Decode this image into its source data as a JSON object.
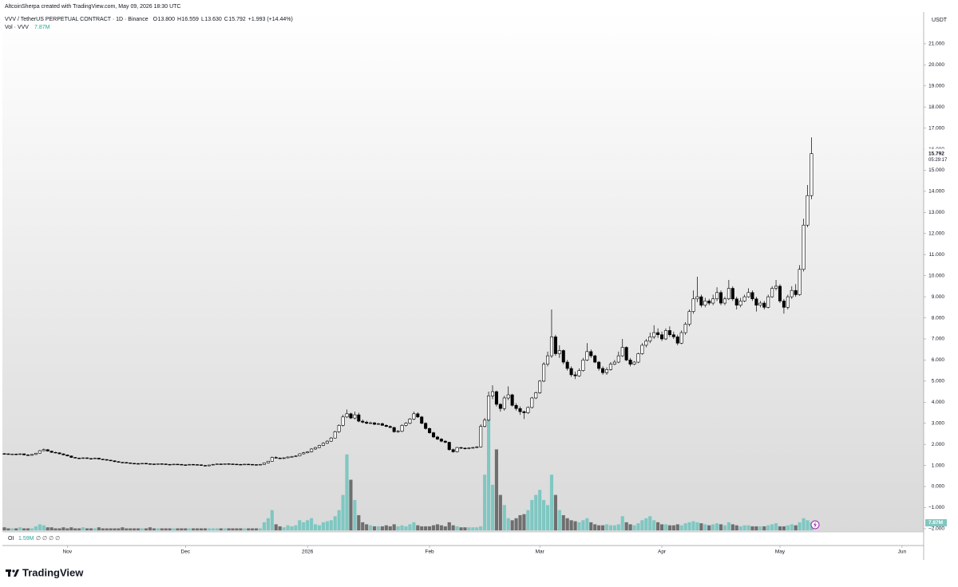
{
  "attribution": "AltcoinSherpa created with TradingView.com, May 09, 2026 18:30 UTC",
  "footer_logo": "TradingView",
  "chart_data": {
    "type": "candlestick",
    "title": "VVV / TetherUS PERPETUAL CONTRACT · 1D · Binance",
    "header_ohlc": [
      {
        "label": "O",
        "value": "13.800"
      },
      {
        "label": "H",
        "value": "16.559"
      },
      {
        "label": "L",
        "value": "13.630"
      },
      {
        "label": "C",
        "value": "15.792"
      }
    ],
    "header_change": "+1.993 (+14.44%)",
    "y_label": "USDT",
    "last_price_label": "15.792",
    "countdown": "05:29:17",
    "up_color": "#ffffff",
    "down_color": "#000000",
    "outline_color": "#000000",
    "open": [
      1.56,
      1.55,
      1.53,
      1.54,
      1.52,
      1.55,
      1.5,
      1.48,
      1.52,
      1.58,
      1.7,
      1.75,
      1.68,
      1.62,
      1.6,
      1.55,
      1.5,
      1.45,
      1.38,
      1.35,
      1.34,
      1.36,
      1.33,
      1.32,
      1.35,
      1.3,
      1.28,
      1.25,
      1.22,
      1.18,
      1.15,
      1.14,
      1.12,
      1.1,
      1.09,
      1.08,
      1.1,
      1.08,
      1.07,
      1.06,
      1.08,
      1.07,
      1.05,
      1.04,
      1.06,
      1.05,
      1.03,
      1.02,
      1.05,
      1.04,
      1.03,
      1.0,
      0.98,
      1.02,
      1.05,
      1.07,
      1.06,
      1.08,
      1.07,
      1.06,
      1.05,
      1.04,
      1.06,
      1.05,
      1.04,
      1.03,
      1.05,
      1.12,
      1.2,
      1.38,
      1.35,
      1.33,
      1.36,
      1.4,
      1.42,
      1.45,
      1.55,
      1.6,
      1.65,
      1.78,
      1.85,
      1.95,
      2.05,
      2.15,
      2.3,
      2.6,
      2.9,
      3.3,
      3.45,
      3.25,
      3.4,
      3.1,
      3.05,
      3.0,
      3.02,
      2.95,
      2.98,
      2.9,
      2.85,
      2.8,
      2.6,
      2.62,
      2.9,
      3.0,
      3.2,
      3.45,
      3.3,
      3.0,
      2.75,
      2.55,
      2.35,
      2.25,
      2.15,
      2.1,
      1.75,
      1.65,
      1.85,
      1.82,
      1.8,
      1.83,
      1.85,
      1.88,
      2.85,
      3.15,
      4.3,
      4.5,
      3.9,
      3.7,
      4.2,
      4.35,
      3.85,
      3.7,
      3.55,
      3.5,
      3.75,
      4.2,
      4.45,
      5.0,
      5.8,
      6.2,
      7.1,
      6.3,
      6.45,
      5.9,
      5.6,
      5.3,
      5.25,
      5.5,
      6.0,
      6.4,
      6.2,
      5.9,
      5.6,
      5.4,
      5.55,
      5.8,
      5.9,
      6.2,
      6.6,
      6.0,
      5.8,
      5.9,
      6.3,
      6.7,
      6.9,
      7.1,
      7.3,
      7.2,
      7.0,
      7.4,
      7.2,
      7.1,
      6.8,
      7.3,
      7.7,
      8.3,
      8.9,
      9.0,
      8.6,
      8.8,
      8.7,
      8.9,
      9.2,
      8.7,
      8.9,
      9.4,
      8.9,
      8.6,
      8.8,
      9.0,
      9.2,
      8.9,
      8.6,
      8.7,
      8.5,
      9.0,
      9.4,
      9.5,
      8.8,
      8.5,
      9.0,
      9.3,
      9.1,
      10.3,
      12.4,
      13.8
    ],
    "high": [
      1.58,
      1.57,
      1.56,
      1.56,
      1.57,
      1.57,
      1.53,
      1.54,
      1.6,
      1.73,
      1.8,
      1.77,
      1.7,
      1.65,
      1.62,
      1.57,
      1.52,
      1.47,
      1.4,
      1.37,
      1.38,
      1.38,
      1.35,
      1.37,
      1.36,
      1.32,
      1.3,
      1.27,
      1.24,
      1.2,
      1.17,
      1.16,
      1.14,
      1.12,
      1.11,
      1.11,
      1.12,
      1.1,
      1.09,
      1.1,
      1.1,
      1.09,
      1.07,
      1.08,
      1.08,
      1.07,
      1.05,
      1.07,
      1.07,
      1.06,
      1.05,
      1.02,
      1.04,
      1.07,
      1.09,
      1.09,
      1.1,
      1.1,
      1.09,
      1.08,
      1.07,
      1.08,
      1.08,
      1.07,
      1.06,
      1.07,
      1.14,
      1.22,
      1.42,
      1.43,
      1.38,
      1.38,
      1.43,
      1.45,
      1.48,
      1.58,
      1.64,
      1.68,
      1.82,
      1.88,
      1.98,
      2.1,
      2.2,
      2.35,
      2.65,
      2.95,
      3.4,
      3.65,
      3.5,
      3.55,
      3.5,
      3.18,
      3.12,
      3.08,
      3.06,
      3.02,
      3.03,
      2.95,
      2.9,
      2.83,
      2.68,
      2.95,
      3.05,
      3.25,
      3.55,
      3.52,
      3.35,
      3.05,
      2.8,
      2.6,
      2.4,
      2.3,
      2.2,
      2.12,
      1.8,
      1.88,
      1.88,
      1.85,
      1.86,
      1.88,
      1.92,
      2.95,
      3.25,
      4.5,
      4.8,
      4.55,
      3.95,
      4.3,
      4.75,
      4.4,
      3.95,
      3.8,
      3.6,
      3.8,
      4.25,
      4.5,
      5.05,
      5.9,
      6.4,
      8.4,
      7.2,
      6.7,
      6.5,
      6.0,
      5.7,
      5.45,
      5.6,
      6.1,
      6.8,
      6.5,
      6.25,
      5.95,
      5.7,
      5.65,
      5.9,
      6.0,
      6.4,
      7.0,
      6.65,
      6.1,
      5.95,
      6.35,
      6.8,
      7.0,
      7.3,
      7.65,
      7.5,
      7.35,
      7.5,
      7.6,
      7.35,
      7.2,
      7.4,
      7.8,
      8.4,
      9.3,
      9.95,
      9.1,
      8.95,
      8.9,
      9.1,
      9.45,
      9.3,
      9.0,
      9.8,
      9.5,
      9.0,
      8.95,
      9.1,
      9.4,
      9.3,
      9.0,
      8.8,
      8.8,
      9.1,
      9.5,
      9.8,
      9.6,
      8.9,
      9.1,
      9.5,
      9.6,
      10.5,
      12.7,
      14.3,
      16.559
    ],
    "low": [
      1.53,
      1.51,
      1.51,
      1.5,
      1.5,
      1.48,
      1.46,
      1.46,
      1.5,
      1.56,
      1.67,
      1.66,
      1.6,
      1.58,
      1.53,
      1.48,
      1.43,
      1.36,
      1.33,
      1.32,
      1.32,
      1.31,
      1.3,
      1.3,
      1.28,
      1.26,
      1.23,
      1.2,
      1.16,
      1.13,
      1.12,
      1.1,
      1.08,
      1.07,
      1.06,
      1.06,
      1.06,
      1.05,
      1.04,
      1.04,
      1.05,
      1.03,
      1.02,
      1.02,
      1.03,
      1.01,
      1.0,
      1.0,
      1.02,
      1.01,
      0.98,
      0.96,
      0.96,
      1.0,
      1.03,
      1.04,
      1.04,
      1.05,
      1.04,
      1.03,
      1.02,
      1.02,
      1.03,
      1.02,
      1.01,
      1.01,
      1.03,
      1.1,
      1.18,
      1.32,
      1.31,
      1.3,
      1.34,
      1.38,
      1.4,
      1.43,
      1.52,
      1.57,
      1.62,
      1.74,
      1.82,
      1.92,
      2.02,
      2.12,
      2.28,
      2.55,
      2.85,
      3.25,
      3.2,
      3.18,
      3.05,
      3.0,
      2.95,
      2.96,
      2.92,
      2.92,
      2.88,
      2.82,
      2.77,
      2.55,
      2.55,
      2.58,
      2.85,
      2.95,
      3.15,
      3.25,
      2.95,
      2.7,
      2.5,
      2.3,
      2.2,
      2.1,
      2.05,
      1.7,
      1.6,
      1.62,
      1.78,
      1.76,
      1.77,
      1.8,
      1.82,
      1.85,
      2.8,
      3.1,
      4.15,
      3.8,
      3.55,
      3.6,
      4.1,
      3.8,
      3.6,
      3.4,
      3.2,
      3.45,
      3.7,
      4.15,
      4.4,
      4.95,
      5.7,
      6.1,
      6.2,
      6.1,
      5.8,
      5.5,
      5.2,
      5.1,
      5.2,
      5.45,
      5.95,
      6.1,
      5.85,
      5.5,
      5.3,
      5.3,
      5.5,
      5.75,
      5.85,
      6.15,
      5.95,
      5.7,
      5.75,
      5.85,
      6.25,
      6.6,
      6.8,
      7.0,
      7.05,
      6.9,
      6.95,
      7.1,
      7.0,
      6.7,
      6.75,
      7.2,
      7.6,
      8.2,
      8.75,
      8.5,
      8.5,
      8.6,
      8.6,
      8.8,
      8.6,
      8.6,
      8.85,
      8.8,
      8.4,
      8.5,
      8.75,
      8.95,
      8.8,
      8.3,
      8.5,
      8.4,
      8.45,
      8.95,
      9.3,
      8.7,
      8.2,
      8.4,
      8.9,
      9.0,
      9.05,
      10.2,
      12.3,
      13.63
    ],
    "close": [
      1.55,
      1.53,
      1.54,
      1.52,
      1.55,
      1.5,
      1.48,
      1.52,
      1.58,
      1.7,
      1.75,
      1.68,
      1.62,
      1.6,
      1.55,
      1.5,
      1.45,
      1.38,
      1.35,
      1.34,
      1.36,
      1.33,
      1.32,
      1.35,
      1.3,
      1.28,
      1.25,
      1.22,
      1.18,
      1.15,
      1.14,
      1.12,
      1.1,
      1.09,
      1.08,
      1.1,
      1.08,
      1.07,
      1.06,
      1.08,
      1.07,
      1.05,
      1.04,
      1.06,
      1.05,
      1.03,
      1.02,
      1.05,
      1.04,
      1.03,
      1.0,
      0.98,
      1.02,
      1.05,
      1.07,
      1.06,
      1.08,
      1.07,
      1.06,
      1.05,
      1.04,
      1.06,
      1.05,
      1.04,
      1.03,
      1.05,
      1.12,
      1.2,
      1.38,
      1.35,
      1.33,
      1.36,
      1.4,
      1.42,
      1.45,
      1.55,
      1.6,
      1.65,
      1.78,
      1.85,
      1.95,
      2.05,
      2.15,
      2.3,
      2.6,
      2.9,
      3.3,
      3.45,
      3.25,
      3.4,
      3.1,
      3.05,
      3.0,
      3.02,
      2.95,
      2.98,
      2.9,
      2.85,
      2.8,
      2.6,
      2.62,
      2.9,
      3.0,
      3.2,
      3.45,
      3.3,
      3.0,
      2.75,
      2.55,
      2.35,
      2.25,
      2.15,
      2.1,
      1.75,
      1.65,
      1.85,
      1.82,
      1.8,
      1.83,
      1.85,
      1.88,
      2.85,
      3.15,
      4.3,
      4.5,
      3.9,
      3.7,
      4.2,
      4.35,
      3.85,
      3.7,
      3.55,
      3.5,
      3.75,
      4.2,
      4.45,
      5.0,
      5.8,
      6.2,
      7.1,
      6.3,
      6.45,
      5.9,
      5.6,
      5.3,
      5.25,
      5.5,
      6.0,
      6.4,
      6.2,
      5.9,
      5.6,
      5.4,
      5.55,
      5.8,
      5.9,
      6.2,
      6.6,
      6.0,
      5.8,
      5.9,
      6.3,
      6.7,
      6.9,
      7.1,
      7.3,
      7.2,
      7.0,
      7.4,
      7.2,
      7.1,
      6.8,
      7.3,
      7.7,
      8.3,
      8.9,
      9.0,
      8.6,
      8.8,
      8.7,
      8.9,
      9.2,
      8.7,
      8.9,
      9.4,
      8.9,
      8.6,
      8.8,
      9.0,
      9.2,
      8.9,
      8.6,
      8.7,
      8.5,
      9.0,
      9.4,
      9.5,
      8.8,
      8.5,
      9.0,
      9.3,
      9.1,
      10.3,
      12.4,
      13.8,
      15.792
    ],
    "volume": {
      "name": "Vol · VVV",
      "axis": "y2",
      "up_color": "#7fc7c2",
      "down_color": "#6f6f6f",
      "value_label": "7.87M",
      "values": [
        3,
        2,
        2,
        2,
        3,
        2,
        2,
        2,
        4,
        6,
        5,
        3,
        3,
        2,
        2,
        3,
        2,
        3,
        2,
        2,
        3,
        2,
        2,
        2,
        3,
        2,
        2,
        2,
        2,
        2,
        3,
        2,
        2,
        2,
        2,
        2,
        2,
        3,
        2,
        2,
        2,
        2,
        2,
        2,
        2,
        2,
        2,
        2,
        2,
        2,
        2,
        2,
        2,
        2,
        2,
        2,
        2,
        2,
        2,
        2,
        2,
        2,
        2,
        2,
        2,
        2,
        8,
        12,
        20,
        6,
        4,
        3,
        5,
        4,
        5,
        10,
        8,
        10,
        12,
        6,
        5,
        8,
        9,
        10,
        14,
        20,
        35,
        75,
        50,
        30,
        15,
        8,
        6,
        5,
        4,
        4,
        4,
        5,
        4,
        6,
        4,
        5,
        4,
        6,
        8,
        5,
        4,
        4,
        4,
        5,
        6,
        5,
        4,
        8,
        5,
        4,
        3,
        3,
        3,
        3,
        3,
        4,
        55,
        110,
        45,
        80,
        35,
        25,
        12,
        10,
        12,
        15,
        16,
        20,
        30,
        35,
        40,
        30,
        25,
        55,
        35,
        20,
        15,
        12,
        10,
        9,
        8,
        10,
        12,
        8,
        6,
        5,
        5,
        6,
        5,
        5,
        6,
        14,
        8,
        6,
        5,
        7,
        10,
        12,
        14,
        10,
        8,
        6,
        6,
        5,
        5,
        6,
        5,
        7,
        8,
        9,
        8,
        7,
        6,
        5,
        6,
        7,
        6,
        5,
        8,
        6,
        5,
        4,
        5,
        5,
        4,
        4,
        4,
        4,
        5,
        6,
        7,
        4,
        4,
        5,
        6,
        5,
        8,
        12,
        10,
        7.87
      ]
    },
    "oi": {
      "name": "OI",
      "value_label": "1.59M",
      "extra": "∅ ∅ ∅ ∅"
    },
    "xlim": [
      -0.5,
      233.5
    ],
    "xticks": [
      {
        "value": 16,
        "label": "Nov"
      },
      {
        "value": 46,
        "label": "Dec"
      },
      {
        "value": 77,
        "label": "2026"
      },
      {
        "value": 108,
        "label": "Feb"
      },
      {
        "value": 136,
        "label": "Mar"
      },
      {
        "value": 167,
        "label": "Apr"
      },
      {
        "value": 197,
        "label": "May"
      },
      {
        "value": 228,
        "label": "Jun"
      }
    ],
    "ylim": [
      -2.08,
      22.32
    ],
    "y2lim": [
      0,
      508
    ],
    "yticks": [
      {
        "value": -2,
        "label": "−2.000"
      },
      {
        "value": -1,
        "label": "−1.000"
      },
      {
        "value": 0,
        "label": "0.000"
      },
      {
        "value": 1,
        "label": "1.000"
      },
      {
        "value": 2,
        "label": "2.000"
      },
      {
        "value": 3,
        "label": "3.000"
      },
      {
        "value": 4,
        "label": "4.000"
      },
      {
        "value": 5,
        "label": "5.000"
      },
      {
        "value": 6,
        "label": "6.000"
      },
      {
        "value": 7,
        "label": "7.000"
      },
      {
        "value": 8,
        "label": "8.000"
      },
      {
        "value": 9,
        "label": "9.000"
      },
      {
        "value": 10,
        "label": "10.000"
      },
      {
        "value": 11,
        "label": "11.000"
      },
      {
        "value": 12,
        "label": "12.000"
      },
      {
        "value": 13,
        "label": "13.000"
      },
      {
        "value": 14,
        "label": "14.000"
      },
      {
        "value": 15,
        "label": "15.000"
      },
      {
        "value": 16,
        "label": "16.000"
      },
      {
        "value": 17,
        "label": "17.000"
      },
      {
        "value": 18,
        "label": "18.000"
      },
      {
        "value": 19,
        "label": "19.000"
      },
      {
        "value": 20,
        "label": "20.000"
      },
      {
        "value": 21,
        "label": "21.000"
      }
    ],
    "grid": false
  }
}
